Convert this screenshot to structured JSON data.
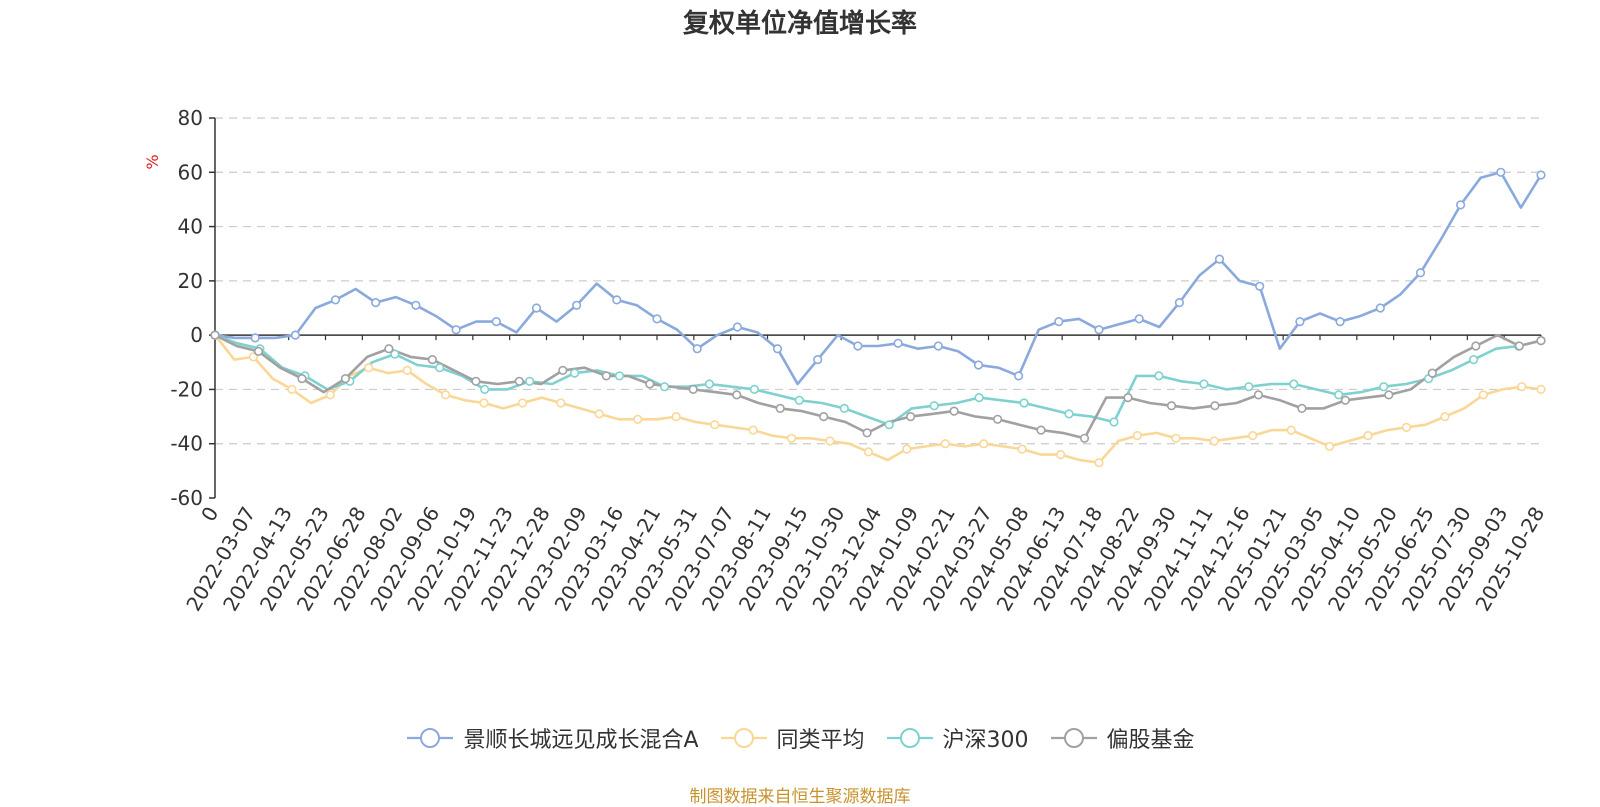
{
  "chart_data": {
    "type": "line",
    "title": "复权单位净值增长率",
    "ylabel": "%",
    "ylim": [
      -60,
      80
    ],
    "yticks": [
      -60,
      -40,
      -20,
      0,
      20,
      40,
      60,
      80
    ],
    "grid": true,
    "legend_position": "bottom",
    "x_ticks": [
      "0",
      "2022-03-07",
      "2022-04-13",
      "2022-05-23",
      "2022-06-28",
      "2022-08-02",
      "2022-09-06",
      "2022-10-19",
      "2022-11-23",
      "2022-12-28",
      "2023-02-09",
      "2023-03-16",
      "2023-04-21",
      "2023-05-31",
      "2023-07-07",
      "2023-08-11",
      "2023-09-15",
      "2023-10-30",
      "2023-12-04",
      "2024-01-09",
      "2024-02-21",
      "2024-03-27",
      "2024-05-08",
      "2024-06-13",
      "2024-07-18",
      "2024-08-22",
      "2024-09-30",
      "2024-11-11",
      "2024-12-16",
      "2025-01-21",
      "2025-03-05",
      "2025-04-10",
      "2025-05-20",
      "2025-06-25",
      "2025-07-30",
      "2025-09-03",
      "2025-10-28"
    ],
    "series": [
      {
        "name": "景顺长城远见成长混合A",
        "color": "#8aa9dc",
        "values": [
          0,
          -1,
          -1,
          -1,
          0,
          10,
          13,
          17,
          12,
          14,
          11,
          7,
          2,
          5,
          5,
          1,
          10,
          5,
          11,
          19,
          13,
          11,
          6,
          2,
          -5,
          0,
          3,
          1,
          -5,
          -18,
          -9,
          0,
          -4,
          -4,
          -3,
          -5,
          -4,
          -6,
          -11,
          -12,
          -15,
          2,
          5,
          6,
          2,
          4,
          6,
          3,
          12,
          22,
          28,
          20,
          18,
          -5,
          5,
          8,
          5,
          7,
          10,
          15,
          23,
          35,
          48,
          58,
          60,
          47,
          59
        ]
      },
      {
        "name": "同类平均",
        "color": "#fad797",
        "values": [
          0,
          -9,
          -8,
          -16,
          -20,
          -25,
          -22,
          -15,
          -12,
          -14,
          -13,
          -18,
          -22,
          -24,
          -25,
          -27,
          -25,
          -23,
          -25,
          -27,
          -29,
          -31,
          -31,
          -31,
          -30,
          -32,
          -33,
          -34,
          -35,
          -37,
          -38,
          -38,
          -39,
          -40,
          -43,
          -46,
          -42,
          -41,
          -40,
          -41,
          -40,
          -41,
          -42,
          -44,
          -44,
          -46,
          -47,
          -39,
          -37,
          -36,
          -38,
          -38,
          -39,
          -38,
          -37,
          -35,
          -35,
          -38,
          -41,
          -39,
          -37,
          -35,
          -34,
          -33,
          -30,
          -27,
          -22,
          -20,
          -19,
          -20
        ]
      },
      {
        "name": "沪深300",
        "color": "#7fd1cf",
        "values": [
          0,
          -3,
          -5,
          -12,
          -15,
          -20,
          -17,
          -10,
          -7,
          -11,
          -12,
          -15,
          -20,
          -20,
          -17,
          -18,
          -14,
          -13,
          -15,
          -15,
          -19,
          -19,
          -18,
          -19,
          -20,
          -22,
          -24,
          -25,
          -27,
          -30,
          -33,
          -27,
          -26,
          -25,
          -23,
          -24,
          -25,
          -27,
          -29,
          -30,
          -32,
          -15,
          -15,
          -17,
          -18,
          -20,
          -19,
          -18,
          -18,
          -20,
          -22,
          -21,
          -19,
          -18,
          -16,
          -13,
          -9,
          -5,
          -4,
          -2
        ]
      },
      {
        "name": "偏股基金",
        "color": "#a1a1a1",
        "values": [
          0,
          -4,
          -6,
          -12,
          -16,
          -21,
          -16,
          -8,
          -5,
          -8,
          -9,
          -13,
          -17,
          -18,
          -17,
          -18,
          -13,
          -12,
          -15,
          -15,
          -18,
          -19,
          -20,
          -21,
          -22,
          -25,
          -27,
          -28,
          -30,
          -32,
          -36,
          -32,
          -30,
          -29,
          -28,
          -30,
          -31,
          -33,
          -35,
          -36,
          -38,
          -23,
          -23,
          -25,
          -26,
          -27,
          -26,
          -25,
          -22,
          -24,
          -27,
          -27,
          -24,
          -23,
          -22,
          -20,
          -14,
          -8,
          -4,
          0,
          -4,
          -2
        ]
      }
    ]
  },
  "legend": {
    "items": [
      {
        "label": "景顺长城远见成长混合A",
        "color": "#8aa9dc"
      },
      {
        "label": "同类平均",
        "color": "#fad797"
      },
      {
        "label": "沪深300",
        "color": "#7fd1cf"
      },
      {
        "label": "偏股基金",
        "color": "#a1a1a1"
      }
    ]
  },
  "source_text": "制图数据来自恒生聚源数据库",
  "colors": {
    "axis": "#333333",
    "grid": "#cccccc",
    "ylabel": "#e02020",
    "source": "#c7932d"
  }
}
